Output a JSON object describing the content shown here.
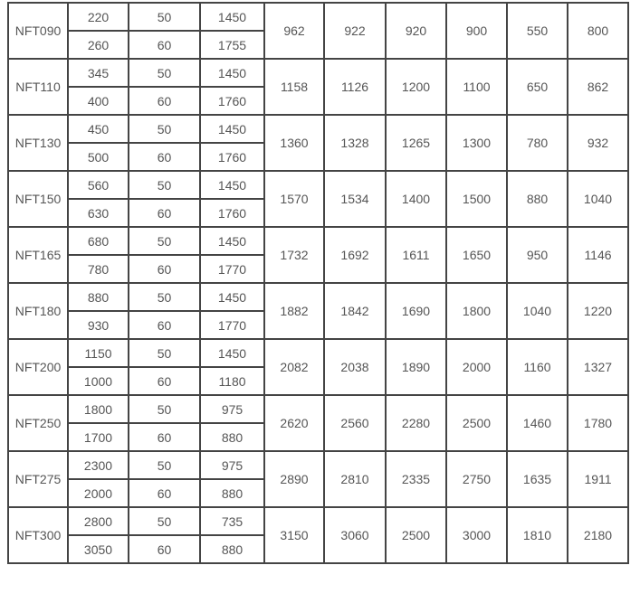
{
  "rows": [
    {
      "model": "NFT090",
      "sub": [
        [
          "220",
          "50",
          "1450"
        ],
        [
          "260",
          "60",
          "1755"
        ]
      ],
      "vals": [
        "962",
        "922",
        "920",
        "900",
        "550",
        "800"
      ]
    },
    {
      "model": "NFT110",
      "sub": [
        [
          "345",
          "50",
          "1450"
        ],
        [
          "400",
          "60",
          "1760"
        ]
      ],
      "vals": [
        "1158",
        "1126",
        "1200",
        "1100",
        "650",
        "862"
      ]
    },
    {
      "model": "NFT130",
      "sub": [
        [
          "450",
          "50",
          "1450"
        ],
        [
          "500",
          "60",
          "1760"
        ]
      ],
      "vals": [
        "1360",
        "1328",
        "1265",
        "1300",
        "780",
        "932"
      ]
    },
    {
      "model": "NFT150",
      "sub": [
        [
          "560",
          "50",
          "1450"
        ],
        [
          "630",
          "60",
          "1760"
        ]
      ],
      "vals": [
        "1570",
        "1534",
        "1400",
        "1500",
        "880",
        "1040"
      ]
    },
    {
      "model": "NFT165",
      "sub": [
        [
          "680",
          "50",
          "1450"
        ],
        [
          "780",
          "60",
          "1770"
        ]
      ],
      "vals": [
        "1732",
        "1692",
        "1611",
        "1650",
        "950",
        "1146"
      ]
    },
    {
      "model": "NFT180",
      "sub": [
        [
          "880",
          "50",
          "1450"
        ],
        [
          "930",
          "60",
          "1770"
        ]
      ],
      "vals": [
        "1882",
        "1842",
        "1690",
        "1800",
        "1040",
        "1220"
      ]
    },
    {
      "model": "NFT200",
      "sub": [
        [
          "1150",
          "50",
          "1450"
        ],
        [
          "1000",
          "60",
          "1180"
        ]
      ],
      "vals": [
        "2082",
        "2038",
        "1890",
        "2000",
        "1160",
        "1327"
      ]
    },
    {
      "model": "NFT250",
      "sub": [
        [
          "1800",
          "50",
          "975"
        ],
        [
          "1700",
          "60",
          "880"
        ]
      ],
      "vals": [
        "2620",
        "2560",
        "2280",
        "2500",
        "1460",
        "1780"
      ]
    },
    {
      "model": "NFT275",
      "sub": [
        [
          "2300",
          "50",
          "975"
        ],
        [
          "2000",
          "60",
          "880"
        ]
      ],
      "vals": [
        "2890",
        "2810",
        "2335",
        "2750",
        "1635",
        "1911"
      ]
    },
    {
      "model": "NFT300",
      "sub": [
        [
          "2800",
          "50",
          "735"
        ],
        [
          "3050",
          "60",
          "880"
        ]
      ],
      "vals": [
        "3150",
        "3060",
        "2500",
        "3000",
        "1810",
        "2180"
      ]
    }
  ]
}
